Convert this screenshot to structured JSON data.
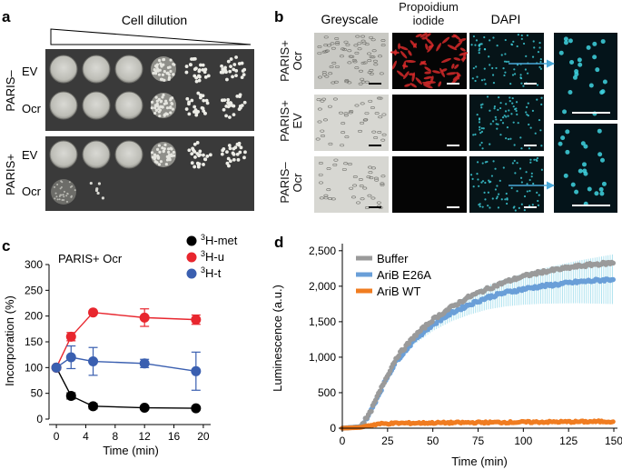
{
  "panel_a": {
    "letter": "a",
    "dilution_label": "Cell dilution",
    "groups": [
      {
        "name": "PARIS–",
        "rows": [
          {
            "label": "EV",
            "spots": [
              "lawn",
              "lawn",
              "lawn",
              "dense",
              "sparse",
              "sparse"
            ]
          },
          {
            "label": "Ocr",
            "spots": [
              "lawn",
              "lawn",
              "lawn",
              "dense",
              "sparse",
              "sparse"
            ]
          }
        ]
      },
      {
        "name": "PARIS+",
        "rows": [
          {
            "label": "EV",
            "spots": [
              "lawn",
              "lawn",
              "lawn",
              "dense",
              "sparse",
              "sparse"
            ]
          },
          {
            "label": "Ocr",
            "spots": [
              "faint",
              "few",
              "none",
              "none",
              "none",
              "none"
            ]
          }
        ]
      }
    ]
  },
  "panel_b": {
    "letter": "b",
    "columns": [
      "Greyscale",
      "Propoidium iodide",
      "DAPI"
    ],
    "rows": [
      "PARIS+ Ocr",
      "PARIS+ EV",
      "PARIS– Ocr"
    ],
    "colors": {
      "pi": "#d62a2a",
      "dapi": "#3fd3e0",
      "arrow": "#4aa8d8"
    }
  },
  "panel_c": {
    "letter": "c",
    "condition_label": "PARIS+ Ocr",
    "chart_data": {
      "type": "line",
      "title": "PARIS+ Ocr",
      "xlabel": "Time (min)",
      "ylabel": "Incorporation (%)",
      "xlim": [
        -1,
        21
      ],
      "ylim": [
        0,
        300
      ],
      "xticks": [
        0,
        4,
        8,
        12,
        16,
        20
      ],
      "yticks": [
        0,
        50,
        100,
        150,
        200,
        250,
        300
      ],
      "x": [
        0,
        2,
        5,
        12,
        19
      ],
      "series": [
        {
          "name": "3H-met",
          "sup": "3",
          "base": "H-met",
          "color": "#000000",
          "values": [
            100,
            45,
            25,
            22,
            21
          ],
          "errors": [
            0,
            6,
            5,
            3,
            3
          ]
        },
        {
          "name": "3H-u",
          "sup": "3",
          "base": "H-u",
          "color": "#e8262e",
          "values": [
            100,
            160,
            207,
            197,
            193
          ],
          "errors": [
            0,
            8,
            3,
            17,
            9
          ]
        },
        {
          "name": "3H-t",
          "sup": "3",
          "base": "H-t",
          "color": "#3a5fb0",
          "values": [
            100,
            120,
            112,
            108,
            93
          ],
          "errors": [
            0,
            22,
            27,
            8,
            37
          ]
        }
      ]
    }
  },
  "panel_d": {
    "letter": "d",
    "chart_data": {
      "type": "line",
      "xlabel": "Time (min)",
      "ylabel": "Luminescence (a.u.)",
      "xlim": [
        0,
        152
      ],
      "ylim": [
        0,
        2600
      ],
      "xticks": [
        0,
        25,
        50,
        75,
        100,
        125,
        150
      ],
      "yticks": [
        0,
        500,
        1000,
        1500,
        2000,
        2500
      ],
      "ytick_labels": [
        "0",
        "500",
        "1,000",
        "1,500",
        "2,000",
        "2,500"
      ],
      "series": [
        {
          "name": "Buffer",
          "color": "#9a9a9a",
          "x": [
            0,
            10,
            15,
            20,
            25,
            30,
            40,
            50,
            60,
            70,
            80,
            90,
            100,
            110,
            120,
            130,
            140,
            150
          ],
          "values": [
            0,
            20,
            200,
            480,
            750,
            1000,
            1300,
            1530,
            1700,
            1850,
            1960,
            2060,
            2140,
            2200,
            2240,
            2280,
            2310,
            2330
          ]
        },
        {
          "name": "AriB E26A",
          "color": "#6a9fd8",
          "x": [
            0,
            10,
            15,
            20,
            25,
            30,
            40,
            50,
            60,
            70,
            80,
            90,
            100,
            110,
            120,
            130,
            140,
            150
          ],
          "values": [
            0,
            20,
            200,
            470,
            730,
            950,
            1250,
            1460,
            1620,
            1740,
            1840,
            1910,
            1960,
            2000,
            2030,
            2060,
            2080,
            2100
          ]
        },
        {
          "name": "AriB WT",
          "color": "#f07c20",
          "x": [
            0,
            10,
            15,
            20,
            30,
            50,
            75,
            100,
            125,
            150
          ],
          "values": [
            0,
            10,
            40,
            60,
            70,
            75,
            80,
            85,
            90,
            95
          ]
        }
      ],
      "error_band_color": "#a8e0ee"
    }
  }
}
